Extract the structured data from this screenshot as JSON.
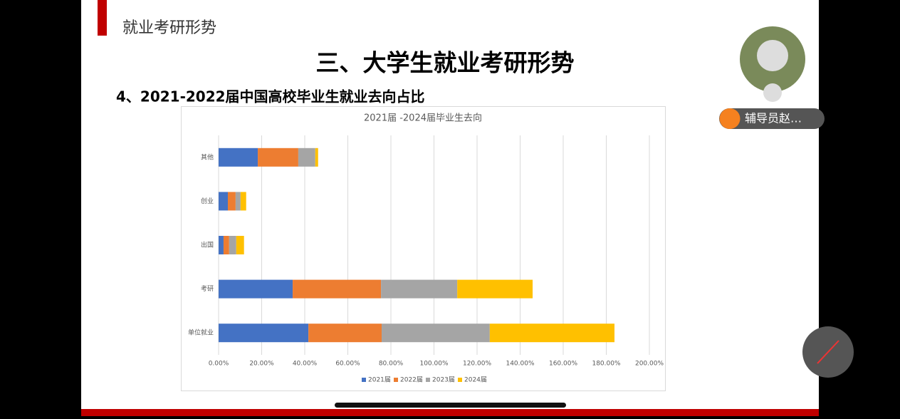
{
  "slide": {
    "header": "就业考研形势",
    "title": "三、大学生就业考研形势",
    "subtitle": "4、2021-2022届中国高校毕业生就业去向占比"
  },
  "participant": {
    "name": "辅导员赵…"
  },
  "chart_data": {
    "type": "stacked-barh",
    "title": "2021届 -2024届毕业生去向",
    "categories": [
      "其他",
      "创业",
      "出国",
      "考研",
      "单位就业"
    ],
    "series": [
      {
        "name": "2021届",
        "color": "#4472c4",
        "values": [
          18.2,
          4.3,
          2.3,
          34.4,
          41.7
        ]
      },
      {
        "name": "2022届",
        "color": "#ed7d31",
        "values": [
          18.8,
          3.6,
          2.6,
          41.0,
          34.0
        ]
      },
      {
        "name": "2023届",
        "color": "#a5a5a5",
        "values": [
          7.9,
          2.3,
          3.3,
          35.4,
          50.2
        ]
      },
      {
        "name": "2024届",
        "color": "#ffc000",
        "values": [
          1.3,
          2.6,
          3.6,
          35.0,
          57.9
        ]
      }
    ],
    "xlim": [
      0,
      200
    ],
    "xticks": [
      {
        "value": 0,
        "label": "0.00%"
      },
      {
        "value": 20,
        "label": "20.00%"
      },
      {
        "value": 40,
        "label": "40.00%"
      },
      {
        "value": 60,
        "label": "60.00%"
      },
      {
        "value": 80,
        "label": "80.00%"
      },
      {
        "value": 100,
        "label": "100.00%"
      },
      {
        "value": 120,
        "label": "120.00%"
      },
      {
        "value": 140,
        "label": "140.00%"
      },
      {
        "value": 160,
        "label": "160.00%"
      },
      {
        "value": 180,
        "label": "180.00%"
      },
      {
        "value": 200,
        "label": "200.00%"
      }
    ],
    "grid": true,
    "legend": "bottom"
  }
}
